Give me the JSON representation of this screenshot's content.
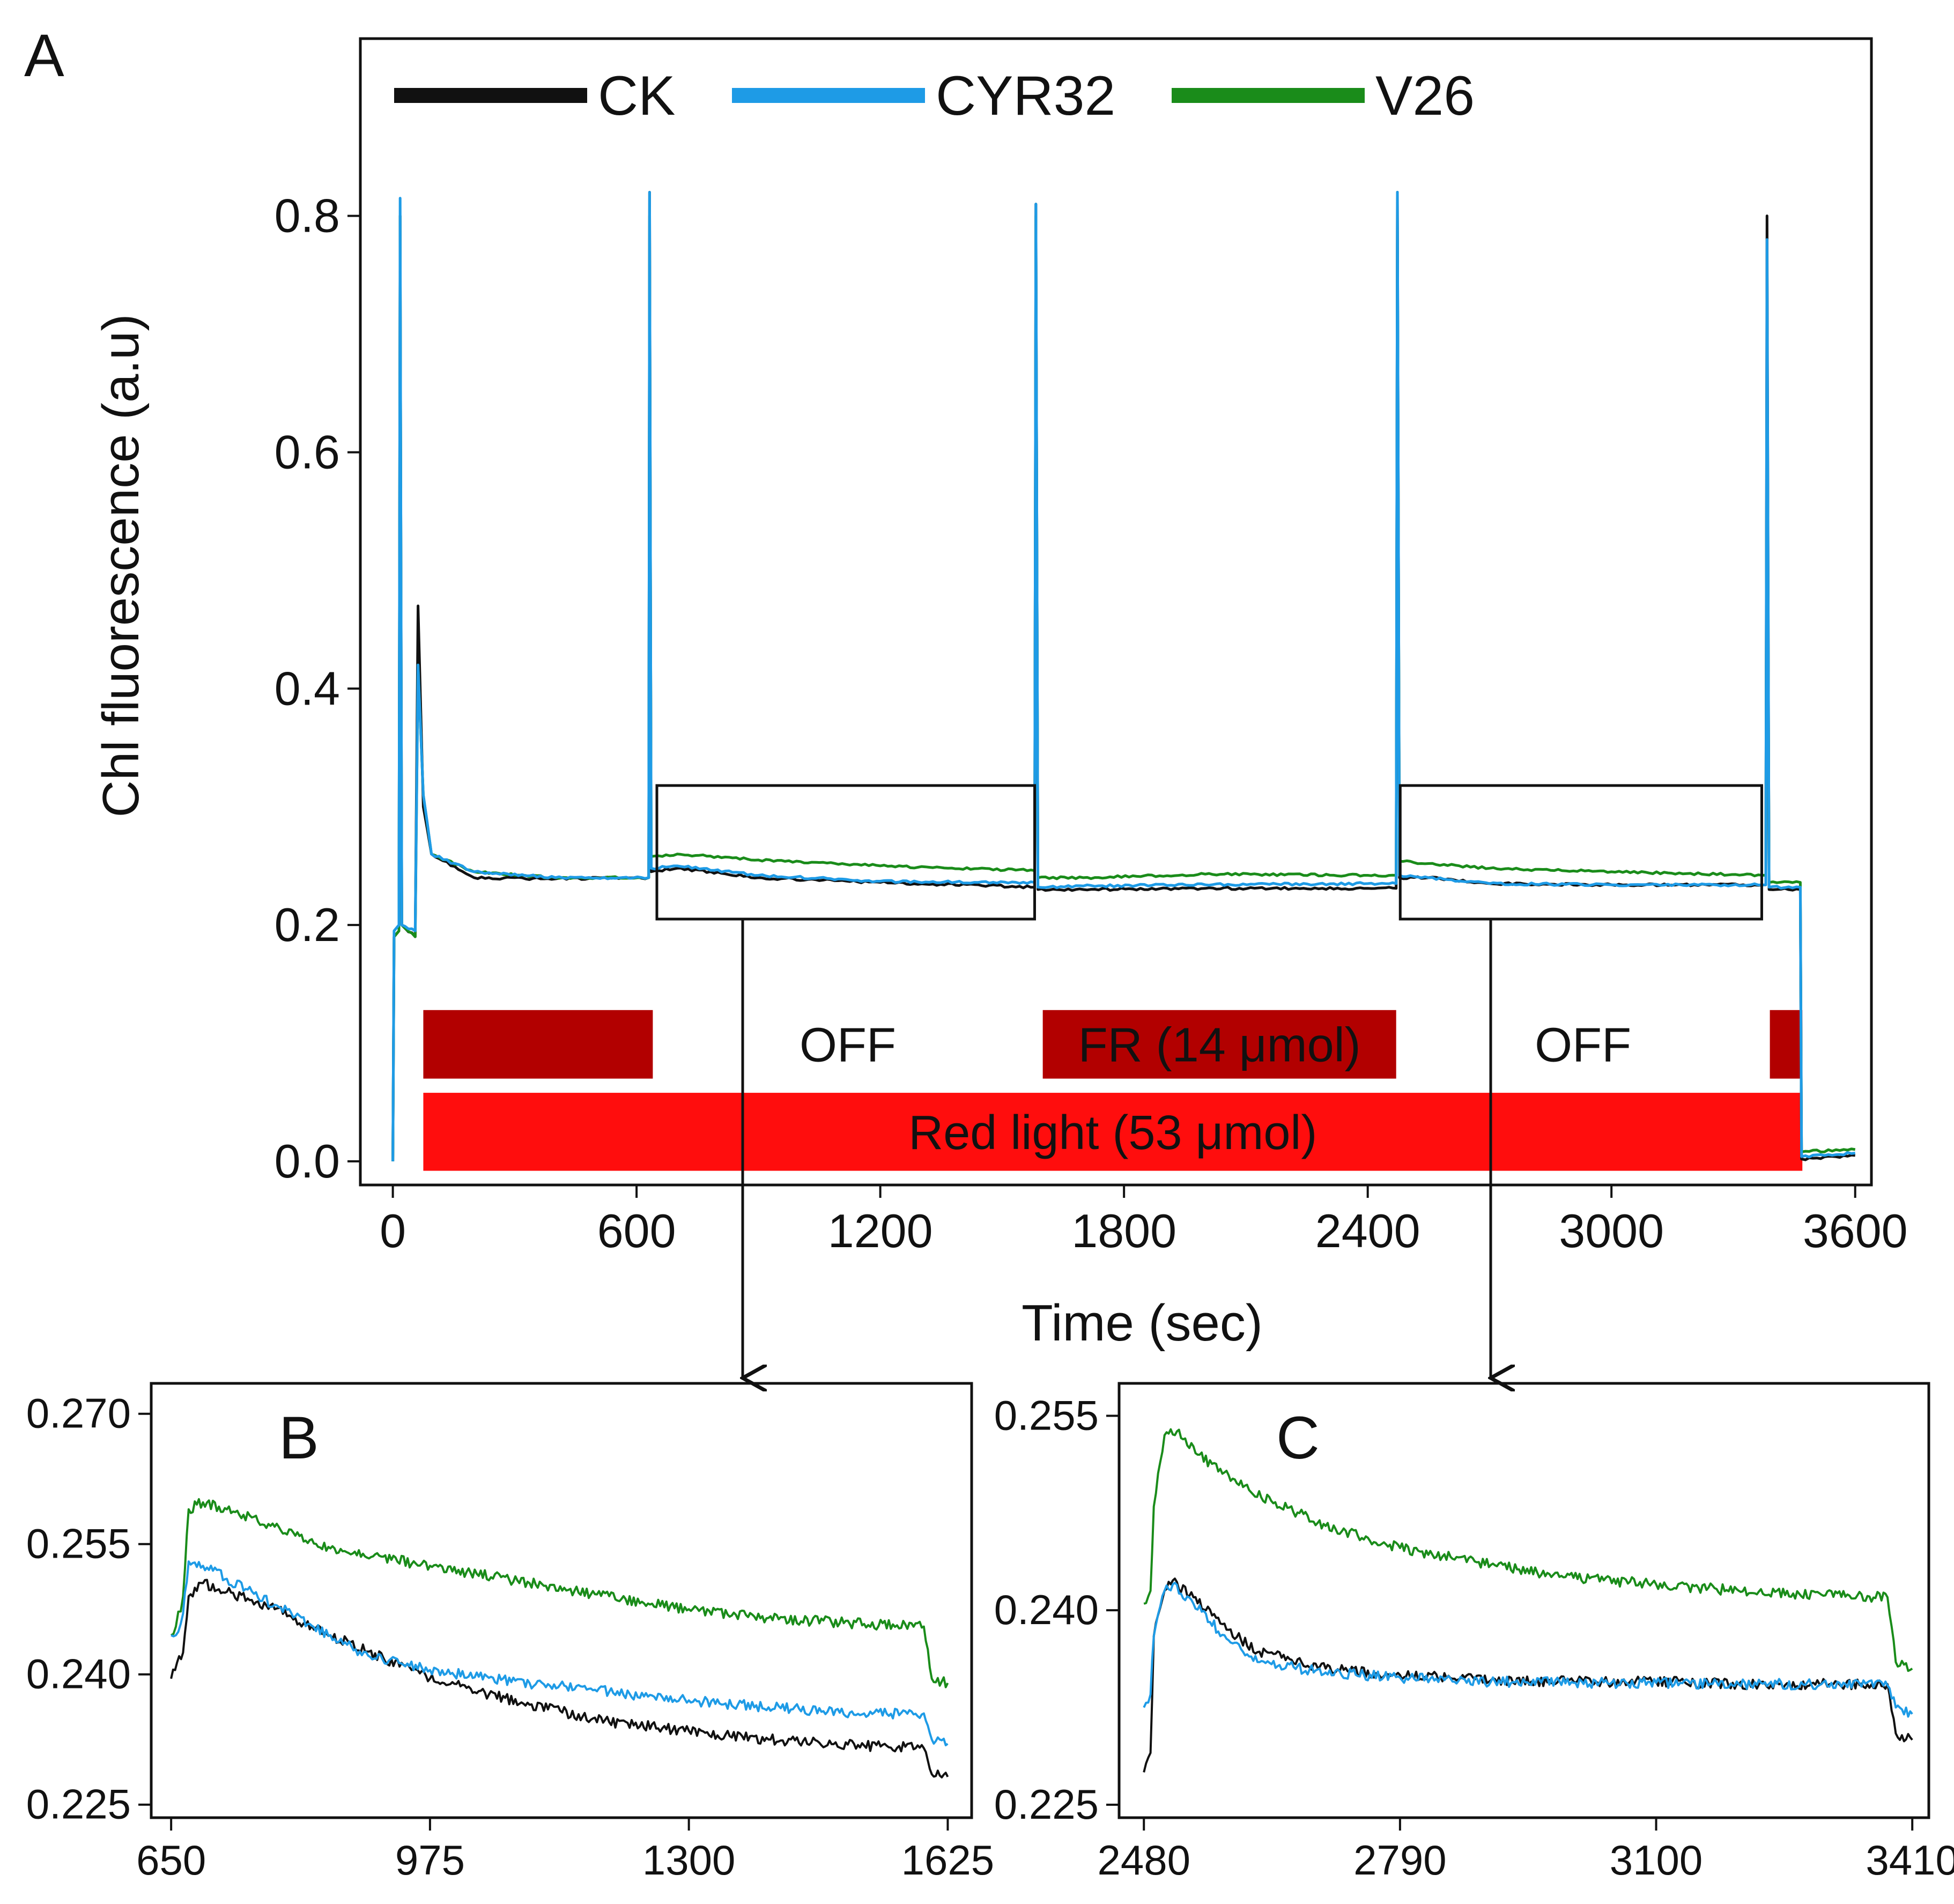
{
  "figure": {
    "panel_a_label": "A",
    "panel_b_label": "B",
    "panel_c_label": "C"
  },
  "colors": {
    "CK": "#111111",
    "CYR32": "#1e9be6",
    "V26": "#1a8c1a",
    "dark_red": "#b20000",
    "red": "#ff0d0d"
  },
  "chart_data": [
    {
      "id": "A",
      "type": "line",
      "title": "",
      "xlabel": "Time (sec)",
      "ylabel": "Chl fluorescence (a.u)",
      "xlim": [
        -80,
        3640
      ],
      "ylim": [
        -0.02,
        0.95
      ],
      "xticks": [
        0,
        600,
        1200,
        1800,
        2400,
        3000,
        3600
      ],
      "yticks": [
        0.0,
        0.2,
        0.4,
        0.6,
        0.8
      ],
      "ytick_labels": [
        "0.0",
        "0.2",
        "0.4",
        "0.6",
        "0.8"
      ],
      "legend": {
        "position": "top",
        "entries": [
          "CK",
          "CYR32",
          "V26"
        ]
      },
      "series": [
        {
          "name": "CK",
          "points": [
            [
              0,
              0
            ],
            [
              3,
              0.19
            ],
            [
              15,
              0.195
            ],
            [
              18,
              0.8
            ],
            [
              22,
              0.2
            ],
            [
              55,
              0.19
            ],
            [
              62,
              0.47
            ],
            [
              75,
              0.3
            ],
            [
              95,
              0.26
            ],
            [
              200,
              0.24
            ],
            [
              400,
              0.239
            ],
            [
              630,
              0.24
            ],
            [
              632,
              0.82
            ],
            [
              636,
              0.245
            ],
            [
              700,
              0.248
            ],
            [
              900,
              0.24
            ],
            [
              1200,
              0.236
            ],
            [
              1580,
              0.232
            ],
            [
              1583,
              0.81
            ],
            [
              1588,
              0.23
            ],
            [
              1700,
              0.23
            ],
            [
              2000,
              0.231
            ],
            [
              2400,
              0.231
            ],
            [
              2470,
              0.231
            ],
            [
              2473,
              0.82
            ],
            [
              2478,
              0.24
            ],
            [
              2550,
              0.24
            ],
            [
              2700,
              0.235
            ],
            [
              3000,
              0.234
            ],
            [
              3380,
              0.234
            ],
            [
              3383,
              0.8
            ],
            [
              3388,
              0.23
            ],
            [
              3465,
              0.23
            ],
            [
              3468,
              0.002
            ],
            [
              3600,
              0.005
            ]
          ]
        },
        {
          "name": "CYR32",
          "points": [
            [
              0,
              0
            ],
            [
              3,
              0.195
            ],
            [
              15,
              0.2
            ],
            [
              18,
              0.815
            ],
            [
              22,
              0.2
            ],
            [
              55,
              0.195
            ],
            [
              62,
              0.42
            ],
            [
              75,
              0.31
            ],
            [
              95,
              0.26
            ],
            [
              200,
              0.245
            ],
            [
              400,
              0.24
            ],
            [
              630,
              0.24
            ],
            [
              632,
              0.82
            ],
            [
              636,
              0.248
            ],
            [
              700,
              0.25
            ],
            [
              900,
              0.242
            ],
            [
              1200,
              0.237
            ],
            [
              1580,
              0.236
            ],
            [
              1583,
              0.81
            ],
            [
              1588,
              0.232
            ],
            [
              1700,
              0.233
            ],
            [
              2000,
              0.234
            ],
            [
              2400,
              0.235
            ],
            [
              2470,
              0.235
            ],
            [
              2473,
              0.82
            ],
            [
              2478,
              0.242
            ],
            [
              2550,
              0.24
            ],
            [
              2700,
              0.235
            ],
            [
              3000,
              0.234
            ],
            [
              3380,
              0.234
            ],
            [
              3383,
              0.78
            ],
            [
              3388,
              0.232
            ],
            [
              3465,
              0.232
            ],
            [
              3468,
              0.004
            ],
            [
              3600,
              0.007
            ]
          ]
        },
        {
          "name": "V26",
          "points": [
            [
              0,
              0
            ],
            [
              3,
              0.19
            ],
            [
              15,
              0.195
            ],
            [
              18,
              0.8
            ],
            [
              22,
              0.2
            ],
            [
              55,
              0.19
            ],
            [
              62,
              0.42
            ],
            [
              75,
              0.31
            ],
            [
              95,
              0.26
            ],
            [
              200,
              0.245
            ],
            [
              400,
              0.24
            ],
            [
              630,
              0.24
            ],
            [
              632,
              0.8
            ],
            [
              636,
              0.258
            ],
            [
              700,
              0.26
            ],
            [
              900,
              0.255
            ],
            [
              1200,
              0.25
            ],
            [
              1580,
              0.246
            ],
            [
              1583,
              0.8
            ],
            [
              1588,
              0.24
            ],
            [
              1700,
              0.24
            ],
            [
              2000,
              0.243
            ],
            [
              2400,
              0.242
            ],
            [
              2470,
              0.242
            ],
            [
              2473,
              0.8
            ],
            [
              2478,
              0.254
            ],
            [
              2550,
              0.252
            ],
            [
              2700,
              0.248
            ],
            [
              3000,
              0.245
            ],
            [
              3380,
              0.242
            ],
            [
              3383,
              0.73
            ],
            [
              3388,
              0.236
            ],
            [
              3465,
              0.236
            ],
            [
              3468,
              0.008
            ],
            [
              3600,
              0.01
            ]
          ]
        }
      ],
      "zoom_boxes": [
        {
          "x_range": [
            650,
            1580
          ],
          "y_range": [
            0.205,
            0.318
          ],
          "target": "B"
        },
        {
          "x_range": [
            2480,
            3370
          ],
          "y_range": [
            0.205,
            0.318
          ],
          "target": "C"
        }
      ],
      "light_bars": [
        {
          "label": "",
          "x_range": [
            75,
            640
          ],
          "y_range": [
            0.07,
            0.128
          ],
          "color": "dark_red"
        },
        {
          "label": "OFF",
          "x_range": [
            640,
            1600
          ],
          "y_range": [
            0.07,
            0.128
          ],
          "color": "none"
        },
        {
          "label": "FR (14 μmol)",
          "x_range": [
            1600,
            2470
          ],
          "y_range": [
            0.07,
            0.128
          ],
          "color": "dark_red"
        },
        {
          "label": "OFF",
          "x_range": [
            2470,
            3390
          ],
          "y_range": [
            0.07,
            0.128
          ],
          "color": "none"
        },
        {
          "label": "",
          "x_range": [
            3390,
            3470
          ],
          "y_range": [
            0.07,
            0.128
          ],
          "color": "dark_red"
        },
        {
          "label": "Red light (53 μmol)",
          "x_range": [
            75,
            3470
          ],
          "y_range": [
            -0.008,
            0.058
          ],
          "color": "red"
        }
      ]
    },
    {
      "id": "B",
      "type": "line",
      "title": "",
      "xlabel": "",
      "ylabel": "",
      "xlim": [
        625,
        1655
      ],
      "ylim": [
        0.2235,
        0.2735
      ],
      "xticks": [
        650,
        975,
        1300,
        1625
      ],
      "yticks": [
        0.225,
        0.24,
        0.255,
        0.27
      ],
      "ytick_labels": [
        "0.225",
        "0.240",
        "0.255",
        "0.270"
      ],
      "series": [
        {
          "name": "CK",
          "points": [
            [
              650,
              0.2395
            ],
            [
              655,
              0.2405
            ],
            [
              665,
              0.2425
            ],
            [
              672,
              0.249
            ],
            [
              690,
              0.2505
            ],
            [
              720,
              0.2495
            ],
            [
              780,
              0.2475
            ],
            [
              850,
              0.2445
            ],
            [
              975,
              0.2395
            ],
            [
              1100,
              0.2365
            ],
            [
              1200,
              0.2345
            ],
            [
              1300,
              0.2335
            ],
            [
              1400,
              0.2325
            ],
            [
              1520,
              0.2318
            ],
            [
              1595,
              0.2315
            ],
            [
              1605,
              0.2285
            ],
            [
              1625,
              0.2282
            ]
          ]
        },
        {
          "name": "CYR32",
          "points": [
            [
              650,
              0.2445
            ],
            [
              656,
              0.2445
            ],
            [
              665,
              0.247
            ],
            [
              672,
              0.253
            ],
            [
              690,
              0.2525
            ],
            [
              720,
              0.251
            ],
            [
              780,
              0.248
            ],
            [
              850,
              0.2445
            ],
            [
              900,
              0.242
            ],
            [
              975,
              0.2405
            ],
            [
              1100,
              0.239
            ],
            [
              1200,
              0.238
            ],
            [
              1300,
              0.237
            ],
            [
              1400,
              0.2362
            ],
            [
              1520,
              0.2355
            ],
            [
              1595,
              0.2355
            ],
            [
              1605,
              0.2325
            ],
            [
              1625,
              0.232
            ]
          ]
        },
        {
          "name": "V26",
          "points": [
            [
              650,
              0.2445
            ],
            [
              656,
              0.2455
            ],
            [
              665,
              0.249
            ],
            [
              672,
              0.259
            ],
            [
              690,
              0.2598
            ],
            [
              720,
              0.259
            ],
            [
              780,
              0.257
            ],
            [
              850,
              0.2545
            ],
            [
              975,
              0.2525
            ],
            [
              1100,
              0.2505
            ],
            [
              1200,
              0.249
            ],
            [
              1300,
              0.2475
            ],
            [
              1400,
              0.2465
            ],
            [
              1520,
              0.2458
            ],
            [
              1595,
              0.2455
            ],
            [
              1605,
              0.2395
            ],
            [
              1625,
              0.239
            ]
          ]
        }
      ]
    },
    {
      "id": "C",
      "type": "line",
      "title": "",
      "xlabel": "",
      "ylabel": "",
      "xlim": [
        2450,
        3430
      ],
      "ylim": [
        0.224,
        0.2575
      ],
      "xticks": [
        2480,
        2790,
        3100,
        3410
      ],
      "yticks": [
        0.225,
        0.24,
        0.255
      ],
      "ytick_labels": [
        "0.225",
        "0.240",
        "0.255"
      ],
      "series": [
        {
          "name": "CK",
          "points": [
            [
              2480,
              0.2275
            ],
            [
              2488,
              0.229
            ],
            [
              2492,
              0.238
            ],
            [
              2505,
              0.2415
            ],
            [
              2515,
              0.2423
            ],
            [
              2540,
              0.241
            ],
            [
              2580,
              0.2385
            ],
            [
              2620,
              0.2368
            ],
            [
              2700,
              0.2355
            ],
            [
              2790,
              0.235
            ],
            [
              2900,
              0.2346
            ],
            [
              3000,
              0.2345
            ],
            [
              3100,
              0.2345
            ],
            [
              3200,
              0.2343
            ],
            [
              3300,
              0.2343
            ],
            [
              3380,
              0.2343
            ],
            [
              3390,
              0.2305
            ],
            [
              3410,
              0.23
            ]
          ]
        },
        {
          "name": "CYR32",
          "points": [
            [
              2480,
              0.2325
            ],
            [
              2488,
              0.2335
            ],
            [
              2492,
              0.238
            ],
            [
              2505,
              0.2415
            ],
            [
              2515,
              0.242
            ],
            [
              2540,
              0.2405
            ],
            [
              2580,
              0.2378
            ],
            [
              2620,
              0.236
            ],
            [
              2700,
              0.2352
            ],
            [
              2790,
              0.2348
            ],
            [
              2900,
              0.2345
            ],
            [
              3000,
              0.2344
            ],
            [
              3100,
              0.2344
            ],
            [
              3200,
              0.2343
            ],
            [
              3300,
              0.2343
            ],
            [
              3380,
              0.2342
            ],
            [
              3390,
              0.2325
            ],
            [
              3410,
              0.232
            ]
          ]
        },
        {
          "name": "V26",
          "points": [
            [
              2480,
              0.2405
            ],
            [
              2488,
              0.2415
            ],
            [
              2492,
              0.248
            ],
            [
              2505,
              0.2535
            ],
            [
              2520,
              0.2538
            ],
            [
              2545,
              0.252
            ],
            [
              2600,
              0.2495
            ],
            [
              2700,
              0.2465
            ],
            [
              2790,
              0.2448
            ],
            [
              2900,
              0.2435
            ],
            [
              3000,
              0.2425
            ],
            [
              3100,
              0.242
            ],
            [
              3200,
              0.2415
            ],
            [
              3300,
              0.2412
            ],
            [
              3380,
              0.241
            ],
            [
              3390,
              0.236
            ],
            [
              3410,
              0.2355
            ]
          ]
        }
      ]
    }
  ]
}
